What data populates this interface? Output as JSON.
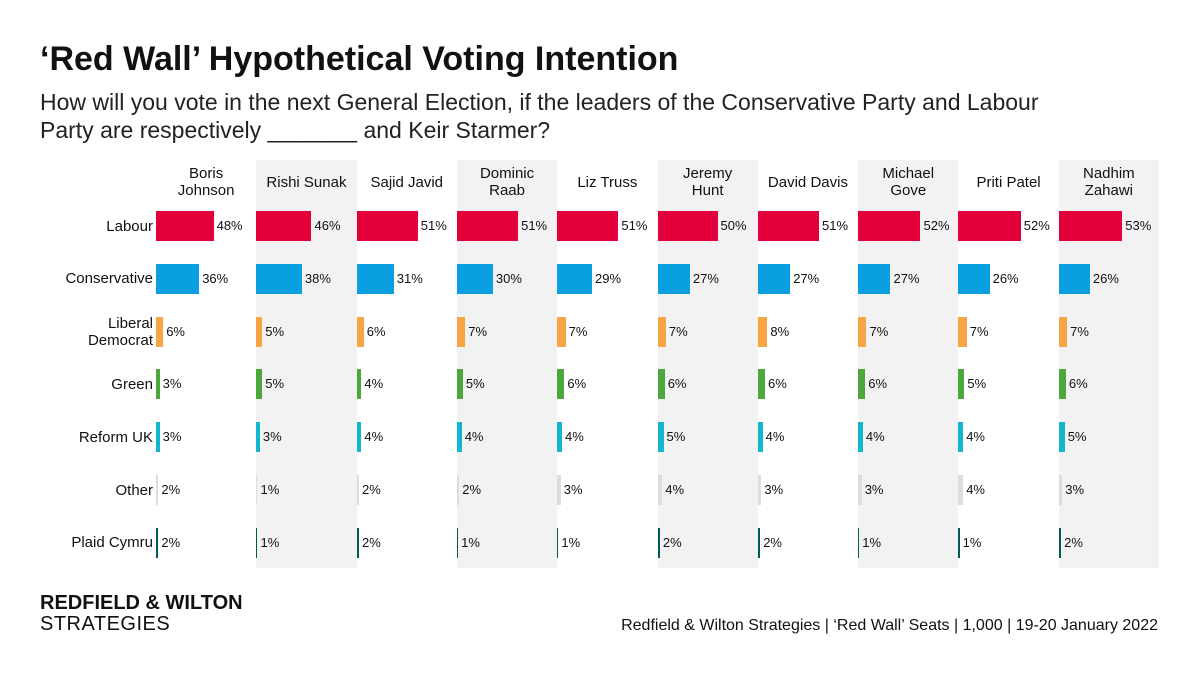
{
  "chart_data": {
    "type": "bar",
    "title": "‘Red Wall’ Hypothetical Voting Intention",
    "subtitle": "How will you vote in the next General Election, if the leaders of the Conservative Party and Labour Party are respectively _______ and Keir Starmer?",
    "brand": [
      "REDFIELD & WILTON",
      "STRATEGIES"
    ],
    "source": "Redfield & Wilton Strategies | ‘Red Wall’ Seats | 1,000 | 19-20 January 2022",
    "categories": [
      "Labour",
      "Conservative",
      "Liberal Democrat",
      "Green",
      "Reform UK",
      "Other",
      "Plaid Cymru"
    ],
    "colors": [
      "#e4003b",
      "#0a9fe0",
      "#f7a444",
      "#4ca83c",
      "#12b6cf",
      "#dddddd",
      "#005b54"
    ],
    "series": [
      {
        "name": "Boris Johnson",
        "values": [
          48,
          36,
          6,
          3,
          3,
          2,
          2
        ],
        "value_labels": [
          "48%",
          "36%",
          "6%",
          "3%",
          "3%",
          "2%",
          "2%"
        ]
      },
      {
        "name": "Rishi Sunak",
        "values": [
          46,
          38,
          5,
          5,
          3,
          1,
          1
        ],
        "value_labels": [
          "46%",
          "38%",
          "5%",
          "5%",
          "3%",
          "1%",
          "1%"
        ]
      },
      {
        "name": "Sajid Javid",
        "values": [
          51,
          31,
          6,
          4,
          4,
          2,
          2
        ],
        "value_labels": [
          "51%",
          "31%",
          "6%",
          "4%",
          "4%",
          "2%",
          "2%"
        ]
      },
      {
        "name": "Dominic Raab",
        "values": [
          51,
          30,
          7,
          5,
          4,
          2,
          1
        ],
        "value_labels": [
          "51%",
          "30%",
          "7%",
          "5%",
          "4%",
          "2%",
          "1%"
        ]
      },
      {
        "name": "Liz Truss",
        "values": [
          51,
          29,
          7,
          6,
          4,
          3,
          1
        ],
        "value_labels": [
          "51%",
          "29%",
          "7%",
          "6%",
          "4%",
          "3%",
          "1%"
        ]
      },
      {
        "name": "Jeremy Hunt",
        "values": [
          50,
          27,
          7,
          6,
          5,
          4,
          2
        ],
        "value_labels": [
          "50%",
          "27%",
          "7%",
          "6%",
          "5%",
          "4%",
          "2%"
        ]
      },
      {
        "name": "David Davis",
        "values": [
          51,
          27,
          8,
          6,
          4,
          3,
          2
        ],
        "value_labels": [
          "51%",
          "27%",
          "8%",
          "6%",
          "4%",
          "3%",
          "2%"
        ]
      },
      {
        "name": "Michael Gove",
        "values": [
          52,
          27,
          7,
          6,
          4,
          3,
          1
        ],
        "value_labels": [
          "52%",
          "27%",
          "7%",
          "6%",
          "4%",
          "3%",
          "1%"
        ]
      },
      {
        "name": "Priti Patel",
        "values": [
          52,
          26,
          7,
          5,
          4,
          4,
          1
        ],
        "value_labels": [
          "52%",
          "26%",
          "7%",
          "5%",
          "4%",
          "4%",
          "1%"
        ]
      },
      {
        "name": "Nadhim Zahawi",
        "values": [
          53,
          26,
          7,
          6,
          5,
          3,
          2
        ],
        "value_labels": [
          "53%",
          "26%",
          "7%",
          "6%",
          "5%",
          "3%",
          "2%"
        ]
      }
    ]
  }
}
